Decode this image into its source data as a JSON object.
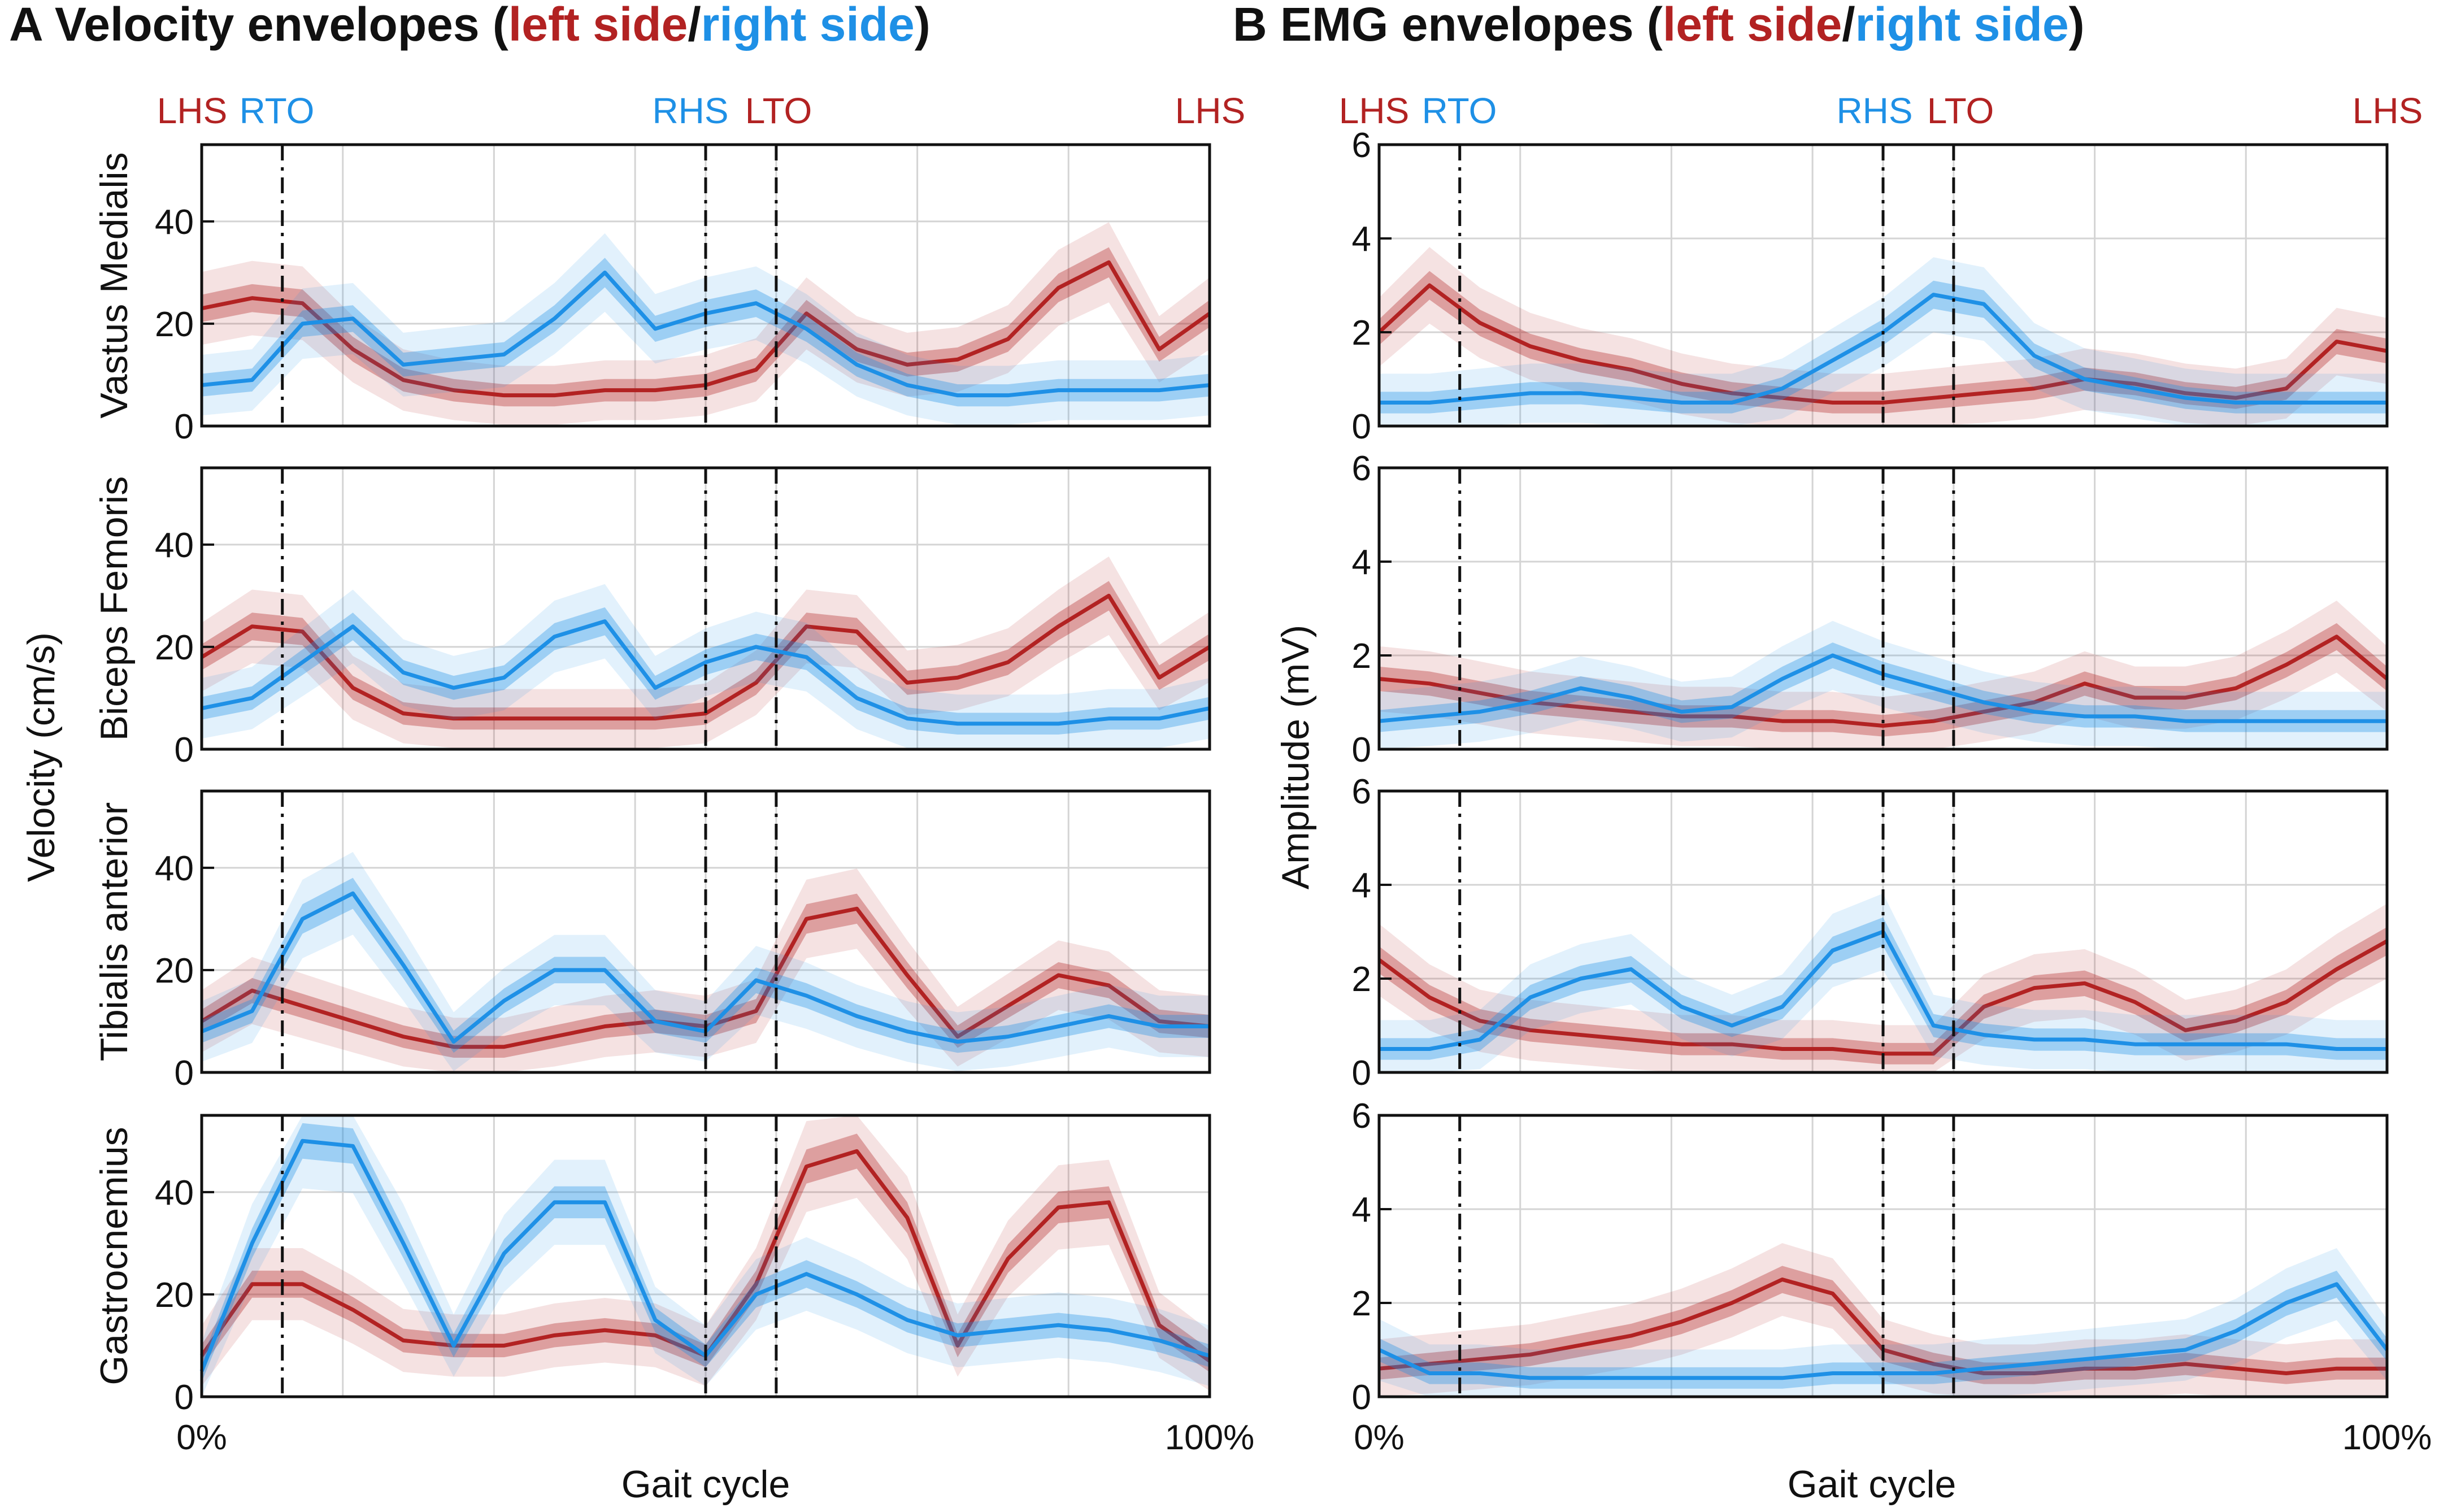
{
  "colors": {
    "left": "#b22222",
    "right": "#1e90e6",
    "grid": "#d4d4d4",
    "axis": "#111111"
  },
  "panels": [
    {
      "letter": "A",
      "title_prefix": "Velocity envelopes (",
      "title_left": "left side",
      "title_sep": "/",
      "title_right": "right side",
      "title_suffix": ")",
      "ylabel": "Velocity  (cm/s)",
      "xlabel": "Gait cycle",
      "x_tick_labels": [
        "0%",
        "100%"
      ],
      "events": [
        {
          "label": "LHS",
          "side": "left",
          "x": 0
        },
        {
          "label": "RTO",
          "side": "right",
          "x": 8
        },
        {
          "label": "RHS",
          "side": "right",
          "x": 50
        },
        {
          "label": "LTO",
          "side": "left",
          "x": 57
        },
        {
          "label": "LHS",
          "side": "left",
          "x": 100
        }
      ],
      "subplots": [
        {
          "muscle": "Vastus Medialis",
          "ylim": [
            0,
            55
          ],
          "yticks": [
            0,
            20,
            40
          ]
        },
        {
          "muscle": "Biceps Femoris",
          "ylim": [
            0,
            55
          ],
          "yticks": [
            0,
            20,
            40
          ]
        },
        {
          "muscle": "Tibialis anterior",
          "ylim": [
            0,
            55
          ],
          "yticks": [
            0,
            20,
            40
          ]
        },
        {
          "muscle": "Gastrocnemius",
          "ylim": [
            0,
            55
          ],
          "yticks": [
            0,
            20,
            40
          ]
        }
      ]
    },
    {
      "letter": "B",
      "title_prefix": "EMG envelopes (",
      "title_left": "left side",
      "title_sep": "/",
      "title_right": "right side",
      "title_suffix": ")",
      "ylabel": "Amplitude (mV)",
      "xlabel": "Gait cycle",
      "x_tick_labels": [
        "0%",
        "100%"
      ],
      "events": [
        {
          "label": "LHS",
          "side": "left",
          "x": 0
        },
        {
          "label": "RTO",
          "side": "right",
          "x": 8
        },
        {
          "label": "RHS",
          "side": "right",
          "x": 50
        },
        {
          "label": "LTO",
          "side": "left",
          "x": 57
        },
        {
          "label": "LHS",
          "side": "left",
          "x": 100
        }
      ],
      "subplots": [
        {
          "muscle": "",
          "ylim": [
            0,
            6
          ],
          "yticks": [
            0,
            2,
            4,
            6
          ]
        },
        {
          "muscle": "",
          "ylim": [
            0,
            6
          ],
          "yticks": [
            0,
            2,
            4,
            6
          ]
        },
        {
          "muscle": "",
          "ylim": [
            0,
            6
          ],
          "yticks": [
            0,
            2,
            4,
            6
          ]
        },
        {
          "muscle": "",
          "ylim": [
            0,
            6
          ],
          "yticks": [
            0,
            2,
            4,
            6
          ]
        }
      ]
    }
  ],
  "chart_data": [
    {
      "type": "line",
      "panel": "A",
      "title": "Velocity envelopes (left side/right side)",
      "xlabel": "Gait cycle",
      "ylabel": "Velocity (cm/s)",
      "xlim": [
        0,
        100
      ],
      "ylim": [
        0,
        55
      ],
      "x": [
        0,
        5,
        10,
        15,
        20,
        25,
        30,
        35,
        40,
        45,
        50,
        55,
        60,
        65,
        70,
        75,
        80,
        85,
        90,
        95,
        100
      ],
      "event_lines": [
        8,
        50,
        57
      ],
      "subplots": [
        {
          "muscle": "Vastus Medialis",
          "series": [
            {
              "name": "left side",
              "values": [
                23,
                25,
                24,
                15,
                9,
                7,
                6,
                6,
                7,
                7,
                8,
                11,
                22,
                15,
                12,
                13,
                17,
                27,
                32,
                15,
                22
              ]
            },
            {
              "name": "right side",
              "values": [
                8,
                9,
                20,
                21,
                12,
                13,
                14,
                21,
                30,
                19,
                22,
                24,
                19,
                12,
                8,
                6,
                6,
                7,
                7,
                7,
                8
              ]
            }
          ]
        },
        {
          "muscle": "Biceps Femoris",
          "series": [
            {
              "name": "left side",
              "values": [
                18,
                24,
                23,
                12,
                7,
                6,
                6,
                6,
                6,
                6,
                7,
                13,
                24,
                23,
                13,
                14,
                17,
                24,
                30,
                14,
                20
              ]
            },
            {
              "name": "right side",
              "values": [
                8,
                10,
                17,
                24,
                15,
                12,
                14,
                22,
                25,
                12,
                17,
                20,
                18,
                10,
                6,
                5,
                5,
                5,
                6,
                6,
                8
              ]
            }
          ]
        },
        {
          "muscle": "Tibialis anterior",
          "series": [
            {
              "name": "left side",
              "values": [
                10,
                16,
                13,
                10,
                7,
                5,
                5,
                7,
                9,
                10,
                9,
                12,
                30,
                32,
                19,
                7,
                13,
                19,
                17,
                10,
                9
              ]
            },
            {
              "name": "right side",
              "values": [
                8,
                12,
                30,
                35,
                21,
                6,
                14,
                20,
                20,
                10,
                8,
                18,
                15,
                11,
                8,
                6,
                7,
                9,
                11,
                9,
                9
              ]
            }
          ]
        },
        {
          "muscle": "Gastrocnemius",
          "series": [
            {
              "name": "left side",
              "values": [
                8,
                22,
                22,
                17,
                11,
                10,
                10,
                12,
                13,
                12,
                8,
                22,
                45,
                48,
                35,
                10,
                27,
                37,
                38,
                14,
                7
              ]
            },
            {
              "name": "right side",
              "values": [
                5,
                30,
                50,
                49,
                30,
                10,
                28,
                38,
                38,
                15,
                8,
                20,
                24,
                20,
                15,
                12,
                13,
                14,
                13,
                11,
                8
              ]
            }
          ]
        }
      ]
    },
    {
      "type": "line",
      "panel": "B",
      "title": "EMG envelopes (left side/right side)",
      "xlabel": "Gait cycle",
      "ylabel": "Amplitude (mV)",
      "xlim": [
        0,
        100
      ],
      "ylim": [
        0,
        6
      ],
      "x": [
        0,
        5,
        10,
        15,
        20,
        25,
        30,
        35,
        40,
        45,
        50,
        55,
        60,
        65,
        70,
        75,
        80,
        85,
        90,
        95,
        100
      ],
      "event_lines": [
        8,
        50,
        57
      ],
      "subplots": [
        {
          "muscle": "Vastus Medialis",
          "series": [
            {
              "name": "left side",
              "values": [
                2.0,
                3.0,
                2.2,
                1.7,
                1.4,
                1.2,
                0.9,
                0.7,
                0.6,
                0.5,
                0.5,
                0.6,
                0.7,
                0.8,
                1.0,
                0.9,
                0.7,
                0.6,
                0.8,
                1.8,
                1.6
              ]
            },
            {
              "name": "right side",
              "values": [
                0.5,
                0.5,
                0.6,
                0.7,
                0.7,
                0.6,
                0.5,
                0.5,
                0.8,
                1.4,
                2.0,
                2.8,
                2.6,
                1.5,
                1.0,
                0.8,
                0.6,
                0.5,
                0.5,
                0.5,
                0.5
              ]
            }
          ]
        },
        {
          "muscle": "Biceps Femoris",
          "series": [
            {
              "name": "left side",
              "values": [
                1.5,
                1.4,
                1.2,
                1.0,
                0.9,
                0.8,
                0.7,
                0.7,
                0.6,
                0.6,
                0.5,
                0.6,
                0.8,
                1.0,
                1.4,
                1.1,
                1.1,
                1.3,
                1.8,
                2.4,
                1.5
              ]
            },
            {
              "name": "right side",
              "values": [
                0.6,
                0.7,
                0.8,
                1.0,
                1.3,
                1.1,
                0.8,
                0.9,
                1.5,
                2.0,
                1.6,
                1.3,
                1.0,
                0.8,
                0.7,
                0.7,
                0.6,
                0.6,
                0.6,
                0.6,
                0.6
              ]
            }
          ]
        },
        {
          "muscle": "Tibialis anterior",
          "series": [
            {
              "name": "left side",
              "values": [
                2.4,
                1.6,
                1.1,
                0.9,
                0.8,
                0.7,
                0.6,
                0.6,
                0.5,
                0.5,
                0.4,
                0.4,
                1.4,
                1.8,
                1.9,
                1.5,
                0.9,
                1.1,
                1.5,
                2.2,
                2.8
              ]
            },
            {
              "name": "right side",
              "values": [
                0.5,
                0.5,
                0.7,
                1.6,
                2.0,
                2.2,
                1.4,
                1.0,
                1.4,
                2.6,
                3.0,
                1.0,
                0.8,
                0.7,
                0.7,
                0.6,
                0.6,
                0.6,
                0.6,
                0.5,
                0.5
              ]
            }
          ]
        },
        {
          "muscle": "Gastrocnemius",
          "series": [
            {
              "name": "left side",
              "values": [
                0.6,
                0.7,
                0.8,
                0.9,
                1.1,
                1.3,
                1.6,
                2.0,
                2.5,
                2.2,
                1.0,
                0.7,
                0.5,
                0.5,
                0.6,
                0.6,
                0.7,
                0.6,
                0.5,
                0.6,
                0.6
              ]
            },
            {
              "name": "right side",
              "values": [
                1.0,
                0.5,
                0.5,
                0.4,
                0.4,
                0.4,
                0.4,
                0.4,
                0.4,
                0.5,
                0.5,
                0.5,
                0.6,
                0.7,
                0.8,
                0.9,
                1.0,
                1.4,
                2.0,
                2.4,
                1.0
              ]
            }
          ]
        }
      ]
    }
  ]
}
